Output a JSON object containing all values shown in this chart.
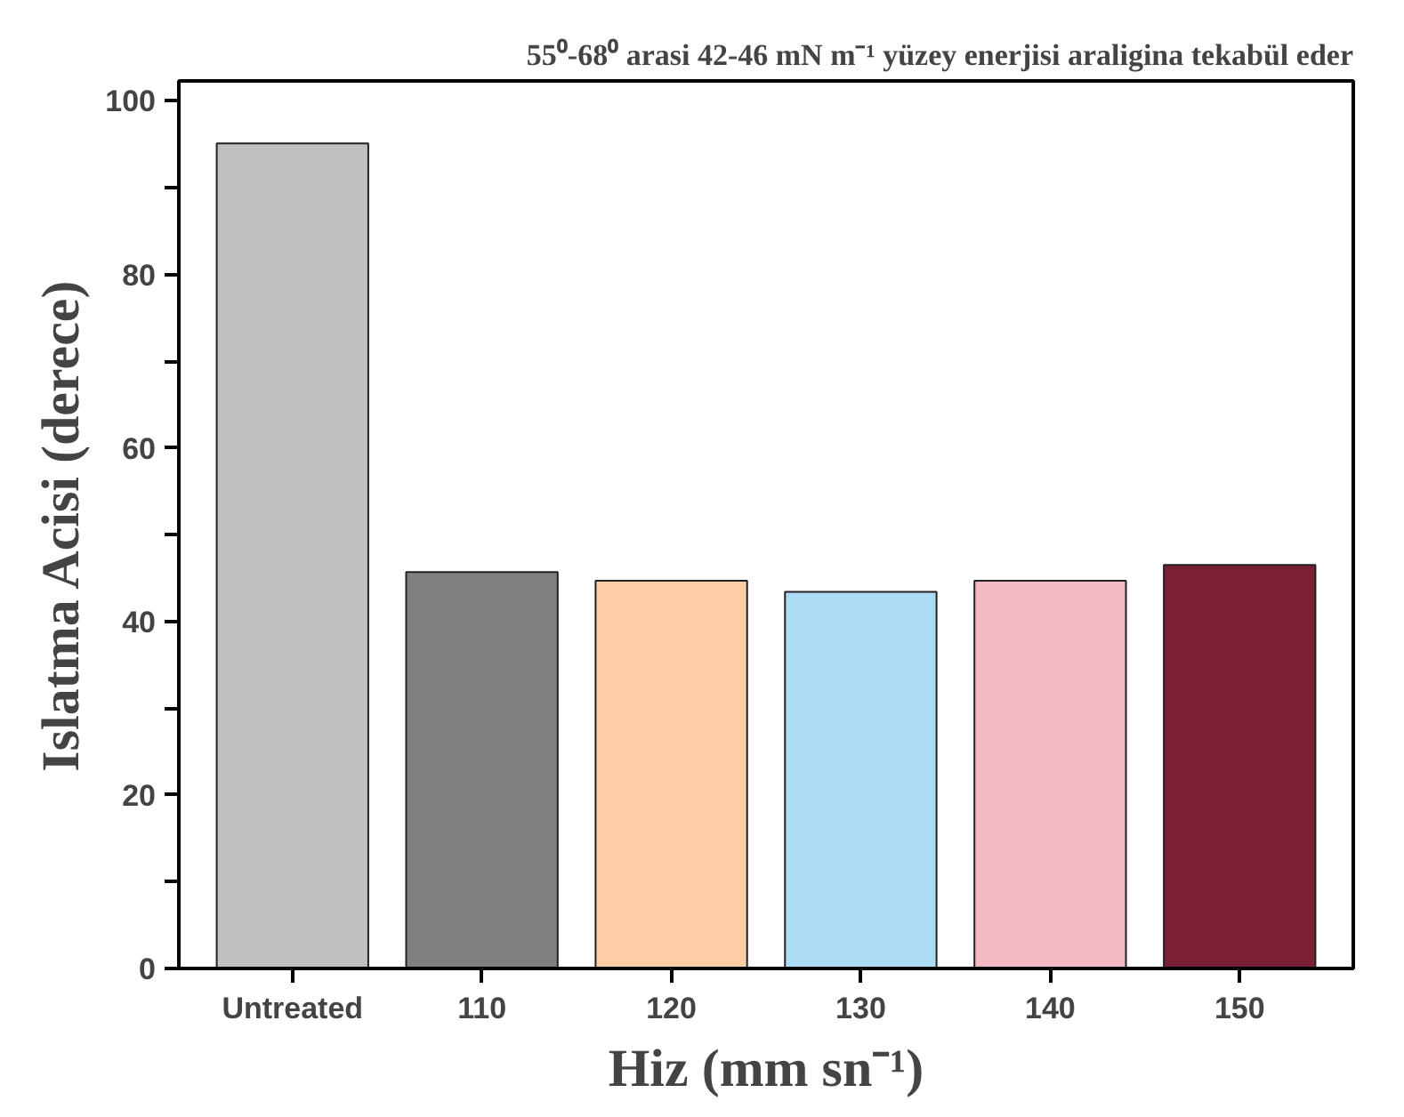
{
  "chart_data": {
    "type": "bar",
    "title": "55⁰-68⁰ arasi 42-46 mN m⁻¹ yüzey enerjisi araligina tekabül eder",
    "xlabel": "Hiz (mm sn⁻¹)",
    "ylabel": "Islatma Acisi (derece)",
    "categories": [
      "Untreated",
      "110",
      "120",
      "130",
      "140",
      "150"
    ],
    "values": [
      95.1,
      45.7,
      44.7,
      43.4,
      44.7,
      46.5
    ],
    "colors": [
      "#c0c0c0",
      "#7f7f7f",
      "#fdcda6",
      "#acdcf5",
      "#f2b8c4",
      "#7a1f36"
    ],
    "ylim": [
      0,
      102.3
    ],
    "yticks": [
      0,
      {
        "value": 10,
        "label": null
      },
      20,
      {
        "value": 30,
        "label": null
      },
      40,
      {
        "value": 50,
        "label": null
      },
      60,
      {
        "value": 70,
        "label": null
      },
      80,
      {
        "value": 90,
        "label": null
      },
      100
    ],
    "grid": false
  }
}
